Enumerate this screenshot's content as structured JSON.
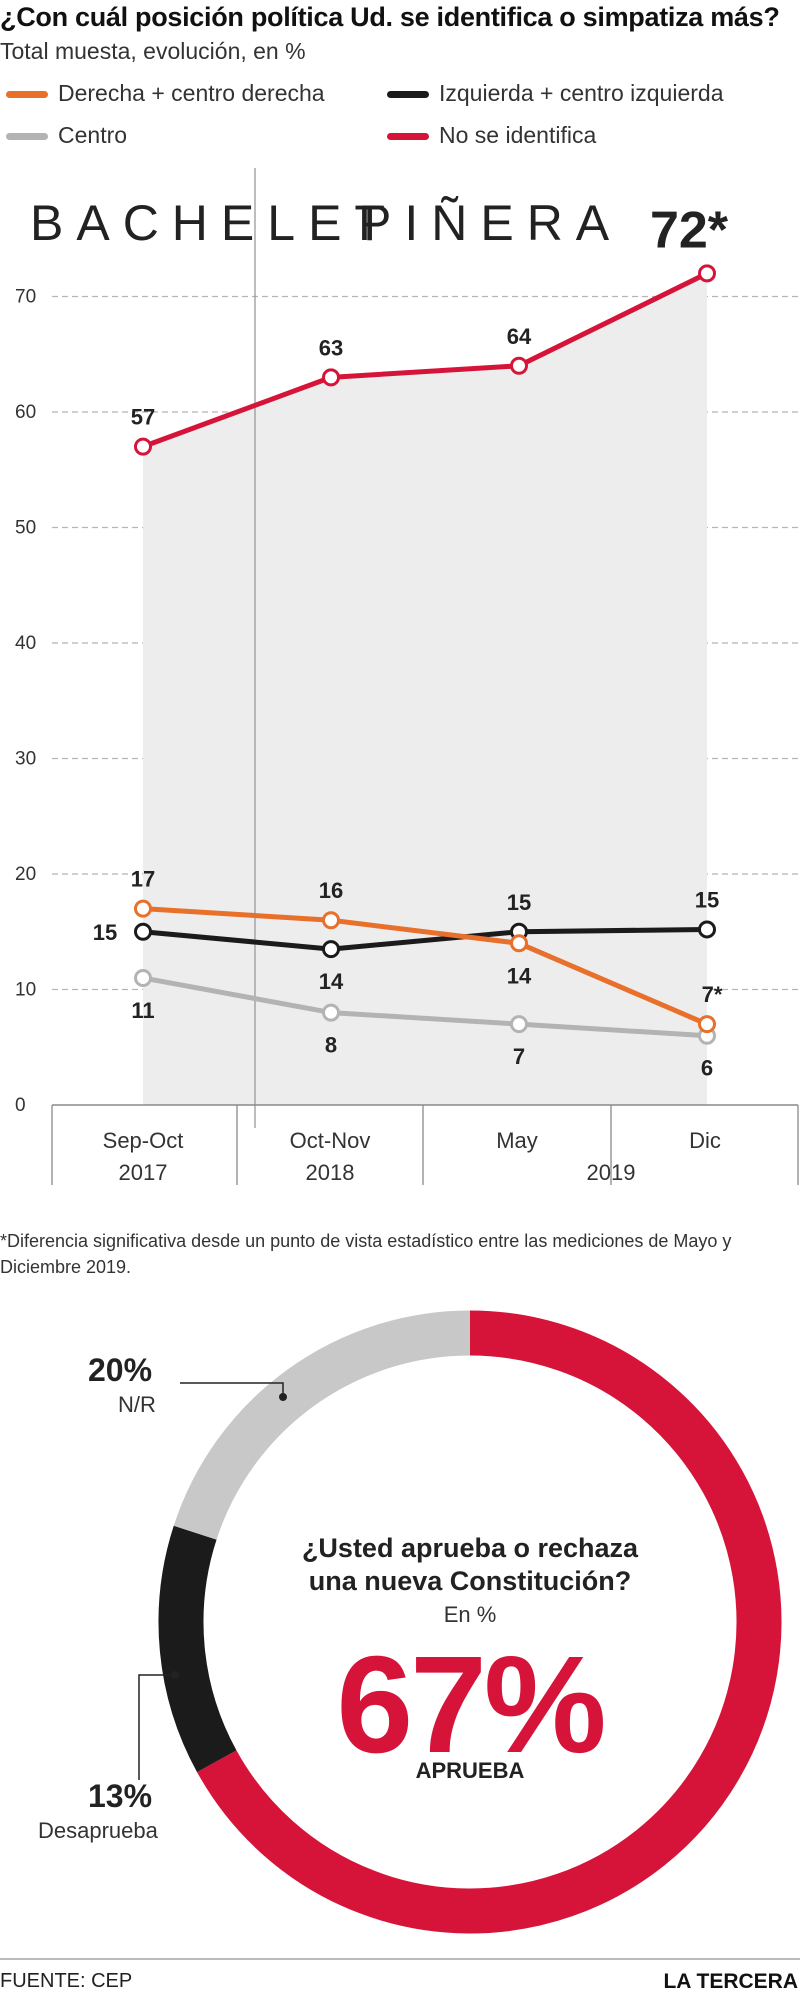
{
  "header": {
    "title": "¿Con cuál posición política Ud. se identifica o simpatiza más?",
    "subtitle": "Total muesta, evolución, en %"
  },
  "legend": [
    {
      "label": "Derecha + centro derecha",
      "color": "#e8702a"
    },
    {
      "label": "Izquierda + centro izquierda",
      "color": "#1b1b1b"
    },
    {
      "label": "Centro",
      "color": "#b3b3b3"
    },
    {
      "label": "No se identifica",
      "color": "#d6143a"
    }
  ],
  "chart_data": [
    {
      "type": "line",
      "categories": [
        "Sep-Oct 2017",
        "Oct-Nov 2018",
        "May 2019",
        "Dic 2019"
      ],
      "x_tick_labels": [
        {
          "line1": "Sep-Oct",
          "line2": "2017"
        },
        {
          "line1": "Oct-Nov",
          "line2": "2018"
        },
        {
          "line1": "May",
          "line2": ""
        },
        {
          "line1": "Dic",
          "line2": ""
        }
      ],
      "year_group_label": "2019",
      "ylim": [
        0,
        72
      ],
      "yticks": [
        0,
        10,
        20,
        30,
        40,
        50,
        60,
        70
      ],
      "grid": true,
      "periods": [
        {
          "label": "BACHELET",
          "from_category": 0
        },
        {
          "label": "PIÑERA",
          "from_category": 1
        }
      ],
      "series": [
        {
          "name": "No se identifica",
          "color": "#d6143a",
          "values": [
            57,
            63,
            64,
            72
          ],
          "labels": [
            "57",
            "63",
            "64",
            "72*"
          ],
          "label_pos": [
            "above",
            "above",
            "above",
            "above-big"
          ],
          "filled_area": true
        },
        {
          "name": "Derecha + centro derecha",
          "color": "#e8702a",
          "values": [
            17,
            16,
            14,
            7
          ],
          "labels": [
            "17",
            "16",
            "14",
            "7*"
          ],
          "label_pos": [
            "above",
            "above",
            "below",
            "above-right"
          ]
        },
        {
          "name": "Izquierda + centro izquierda",
          "color": "#1b1b1b",
          "values": [
            15,
            13.5,
            15,
            15.2
          ],
          "labels": [
            "15",
            "14",
            "15",
            "15"
          ],
          "label_pos": [
            "left",
            "below",
            "above",
            "above"
          ]
        },
        {
          "name": "Centro",
          "color": "#b3b3b3",
          "values": [
            11,
            8,
            7,
            6
          ],
          "labels": [
            "11",
            "8",
            "7",
            "6"
          ],
          "label_pos": [
            "below",
            "below",
            "below",
            "below"
          ]
        }
      ]
    },
    {
      "type": "pie",
      "question": [
        "¿Usted aprueba o rechaza",
        "una nueva Constitución?"
      ],
      "unit": "En %",
      "slices": [
        {
          "label": "APRUEBA",
          "value": 67,
          "display": "67%",
          "color": "#d6143a"
        },
        {
          "label": "Desaprueba",
          "value": 13,
          "display": "13%",
          "color": "#1b1b1b"
        },
        {
          "label": "N/R",
          "value": 20,
          "display": "20%",
          "color": "#c8c8c8"
        }
      ]
    }
  ],
  "footnote": "*Diferencia significativa desde un punto de vista estadístico entre las mediciones de Mayo y Diciembre 2019.",
  "source": "FUENTE: CEP",
  "brand": "LA TERCERA"
}
